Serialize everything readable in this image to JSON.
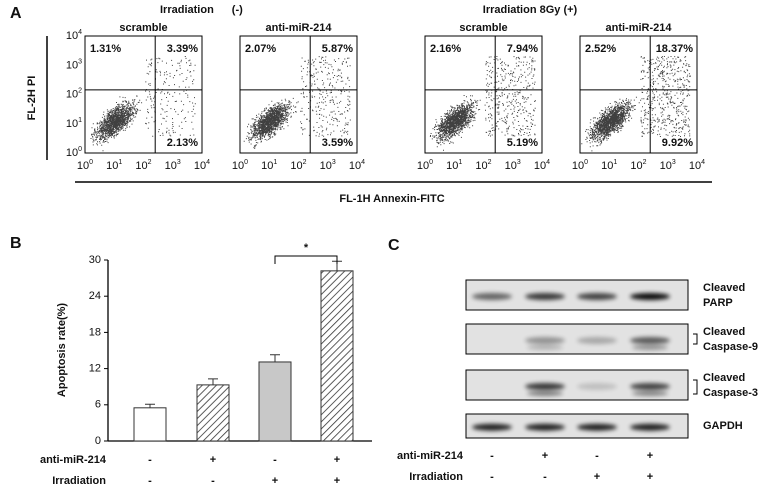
{
  "panel_a": {
    "label": "A",
    "groups": [
      {
        "title": "Irradiation",
        "sign": "(-)"
      },
      {
        "title": "Irradiation 8Gy (+)"
      }
    ],
    "y_label": "FL-2H PI",
    "x_label": "FL-1H Annexin-FITC",
    "tick_base": "10",
    "ticks": [
      "0",
      "1",
      "2",
      "3",
      "4"
    ],
    "plots": [
      {
        "title": "scramble",
        "ul": "1.31%",
        "ur": "3.39%",
        "lr": "2.13%"
      },
      {
        "title": "anti-miR-214",
        "ul": "2.07%",
        "ur": "5.87%",
        "lr": "3.59%"
      },
      {
        "title": "scramble",
        "ul": "2.16%",
        "ur": "7.94%",
        "lr": "5.19%"
      },
      {
        "title": "anti-miR-214",
        "ul": "2.52%",
        "ur": "18.37%",
        "lr": "9.92%"
      }
    ]
  },
  "panel_b": {
    "label": "B",
    "type": "bar",
    "y_label": "Apoptosis rate(%)",
    "values": [
      5.5,
      9.3,
      13.1,
      28.2
    ],
    "errors": [
      0.6,
      1.0,
      1.2,
      1.6
    ],
    "ylim": [
      0,
      30
    ],
    "yticks": [
      0,
      6,
      12,
      18,
      24,
      30
    ],
    "significance": "*",
    "rows": [
      {
        "name": "anti-miR-214",
        "signs": [
          "-",
          "+",
          "-",
          "+"
        ]
      },
      {
        "name": "Irradiation",
        "signs": [
          "-",
          "-",
          "+",
          "+"
        ]
      }
    ]
  },
  "panel_c": {
    "label": "C",
    "bands": [
      [
        "Cleaved",
        "PARP"
      ],
      [
        "Cleaved",
        "Caspase-9"
      ],
      [
        "Cleaved",
        "Caspase-3"
      ],
      [
        "GAPDH"
      ]
    ],
    "rows": [
      {
        "name": "anti-miR-214",
        "signs": [
          "-",
          "+",
          "-",
          "+"
        ]
      },
      {
        "name": "Irradiation",
        "signs": [
          "-",
          "-",
          "+",
          "+"
        ]
      }
    ]
  }
}
